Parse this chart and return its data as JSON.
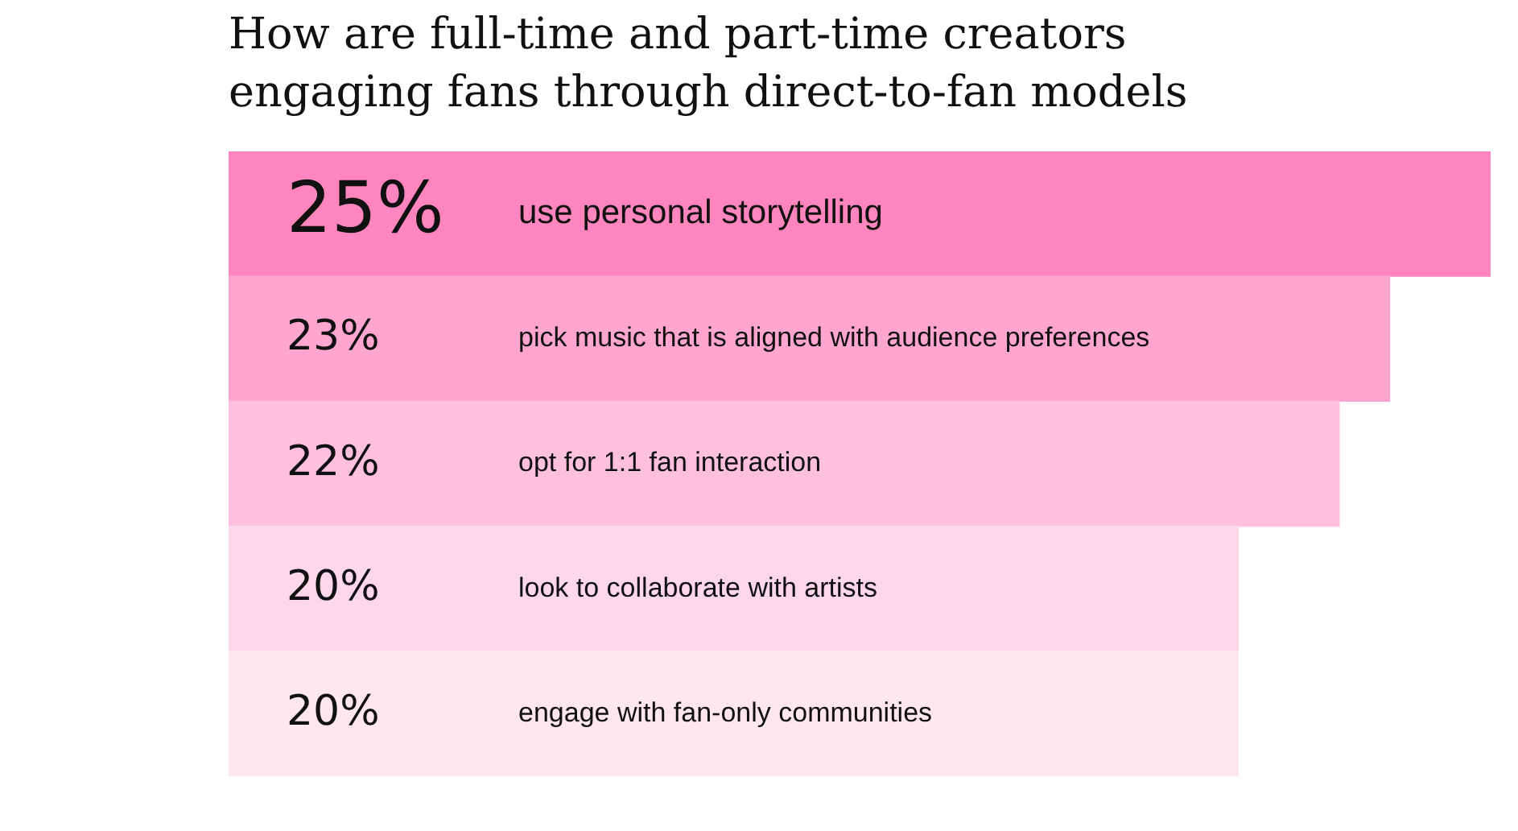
{
  "chart_data": {
    "type": "bar",
    "orientation": "horizontal",
    "title": "How are full-time and part-time creators engaging fans through direct-to-fan models",
    "categories": [
      "use personal storytelling",
      "pick music that is aligned with audience preferences",
      "opt for 1:1 fan interaction",
      "look to collaborate with artists",
      "engage with fan-only communities"
    ],
    "values": [
      25,
      23,
      22,
      20,
      20
    ],
    "colors": [
      "#ff85bf",
      "#ffa6d0",
      "#ffc0dd",
      "#ffd7ea",
      "#ffe6f1"
    ],
    "value_labels": [
      "25%",
      "23%",
      "22%",
      "20%",
      "20%"
    ]
  }
}
